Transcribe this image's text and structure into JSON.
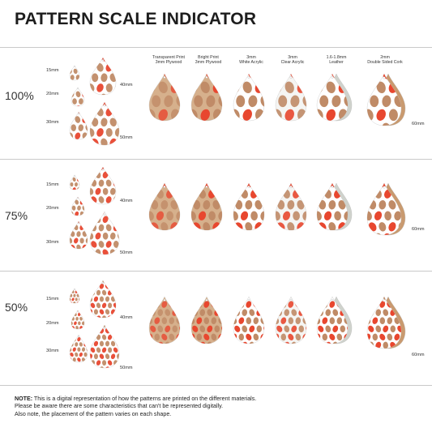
{
  "title": "PATTERN SCALE INDICATOR",
  "columns": [
    {
      "l1": "Transparent Print",
      "l2": "3mm Plywood"
    },
    {
      "l1": "Bright Print",
      "l2": "3mm Plywood"
    },
    {
      "l1": "3mm",
      "l2": "White Acrylic"
    },
    {
      "l1": "3mm",
      "l2": "Clear Acrylic"
    },
    {
      "l1": "1.6-1.8mm",
      "l2": "Leather"
    },
    {
      "l1": "2mm",
      "l2": "Double Sided Cork"
    }
  ],
  "sizes": [
    "15mm",
    "20mm",
    "30mm",
    "40mm",
    "50mm",
    "60mm"
  ],
  "rows": [
    {
      "label": "100%"
    },
    {
      "label": "75%"
    },
    {
      "label": "50%"
    }
  ],
  "note": {
    "prefix": "NOTE:",
    "line1": " This is a digital representation of how the patterns are printed on the different materials.",
    "line2": "Please be aware there are some characteristics that can't be represented digitally.",
    "line3": "Also note, the placement of the pattern varies on each shape."
  },
  "colors": {
    "orange": "#e8472f",
    "brown": "#c08b67",
    "plywood": "#d6b08c",
    "leather": "#cfd2cc",
    "cork": "#c99a6f",
    "white": "#ffffff"
  }
}
